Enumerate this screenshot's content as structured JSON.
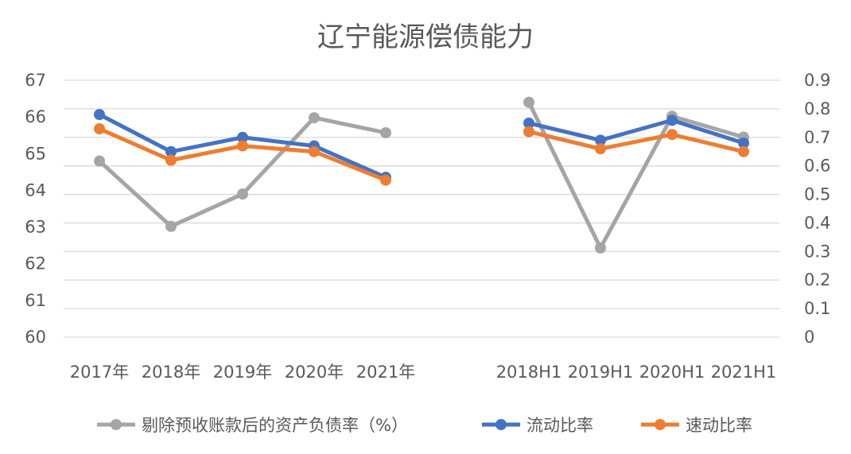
{
  "chart_data": {
    "type": "line",
    "title": "辽宁能源偿债能力",
    "categories": [
      "2017年",
      "2018年",
      "2019年",
      "2020年",
      "2021年",
      "",
      "2018H1",
      "2019H1",
      "2020H1",
      "2021H1"
    ],
    "y_left": {
      "min": 60,
      "max": 67,
      "step": 1,
      "ticks": [
        "60",
        "61",
        "62",
        "63",
        "64",
        "65",
        "66",
        "67"
      ]
    },
    "y_right": {
      "min": 0,
      "max": 0.9,
      "step": 0.1,
      "ticks": [
        "0",
        "0.1",
        "0.2",
        "0.3",
        "0.4",
        "0.5",
        "0.6",
        "0.7",
        "0.8",
        "0.9"
      ]
    },
    "grid": true,
    "legend_position": "bottom",
    "series": [
      {
        "name": "剔除预收账款后的资产负债率（%）",
        "axis": "left",
        "color": "#A5A5A5",
        "segments": [
          {
            "start": 0,
            "values": [
              64.8,
              63.02,
              63.9,
              65.98,
              65.57
            ]
          },
          {
            "start": 6,
            "values": [
              66.4,
              62.43,
              66.02,
              65.45
            ]
          }
        ]
      },
      {
        "name": "流动比率",
        "axis": "right",
        "color": "#4472C4",
        "segments": [
          {
            "start": 0,
            "values": [
              0.78,
              0.65,
              0.7,
              0.67,
              0.56
            ]
          },
          {
            "start": 6,
            "values": [
              0.75,
              0.69,
              0.76,
              0.68
            ]
          }
        ]
      },
      {
        "name": "速动比率",
        "axis": "right",
        "color": "#ED7D31",
        "segments": [
          {
            "start": 0,
            "values": [
              0.73,
              0.62,
              0.67,
              0.65,
              0.55
            ]
          },
          {
            "start": 6,
            "values": [
              0.72,
              0.66,
              0.71,
              0.65
            ]
          }
        ]
      }
    ]
  }
}
